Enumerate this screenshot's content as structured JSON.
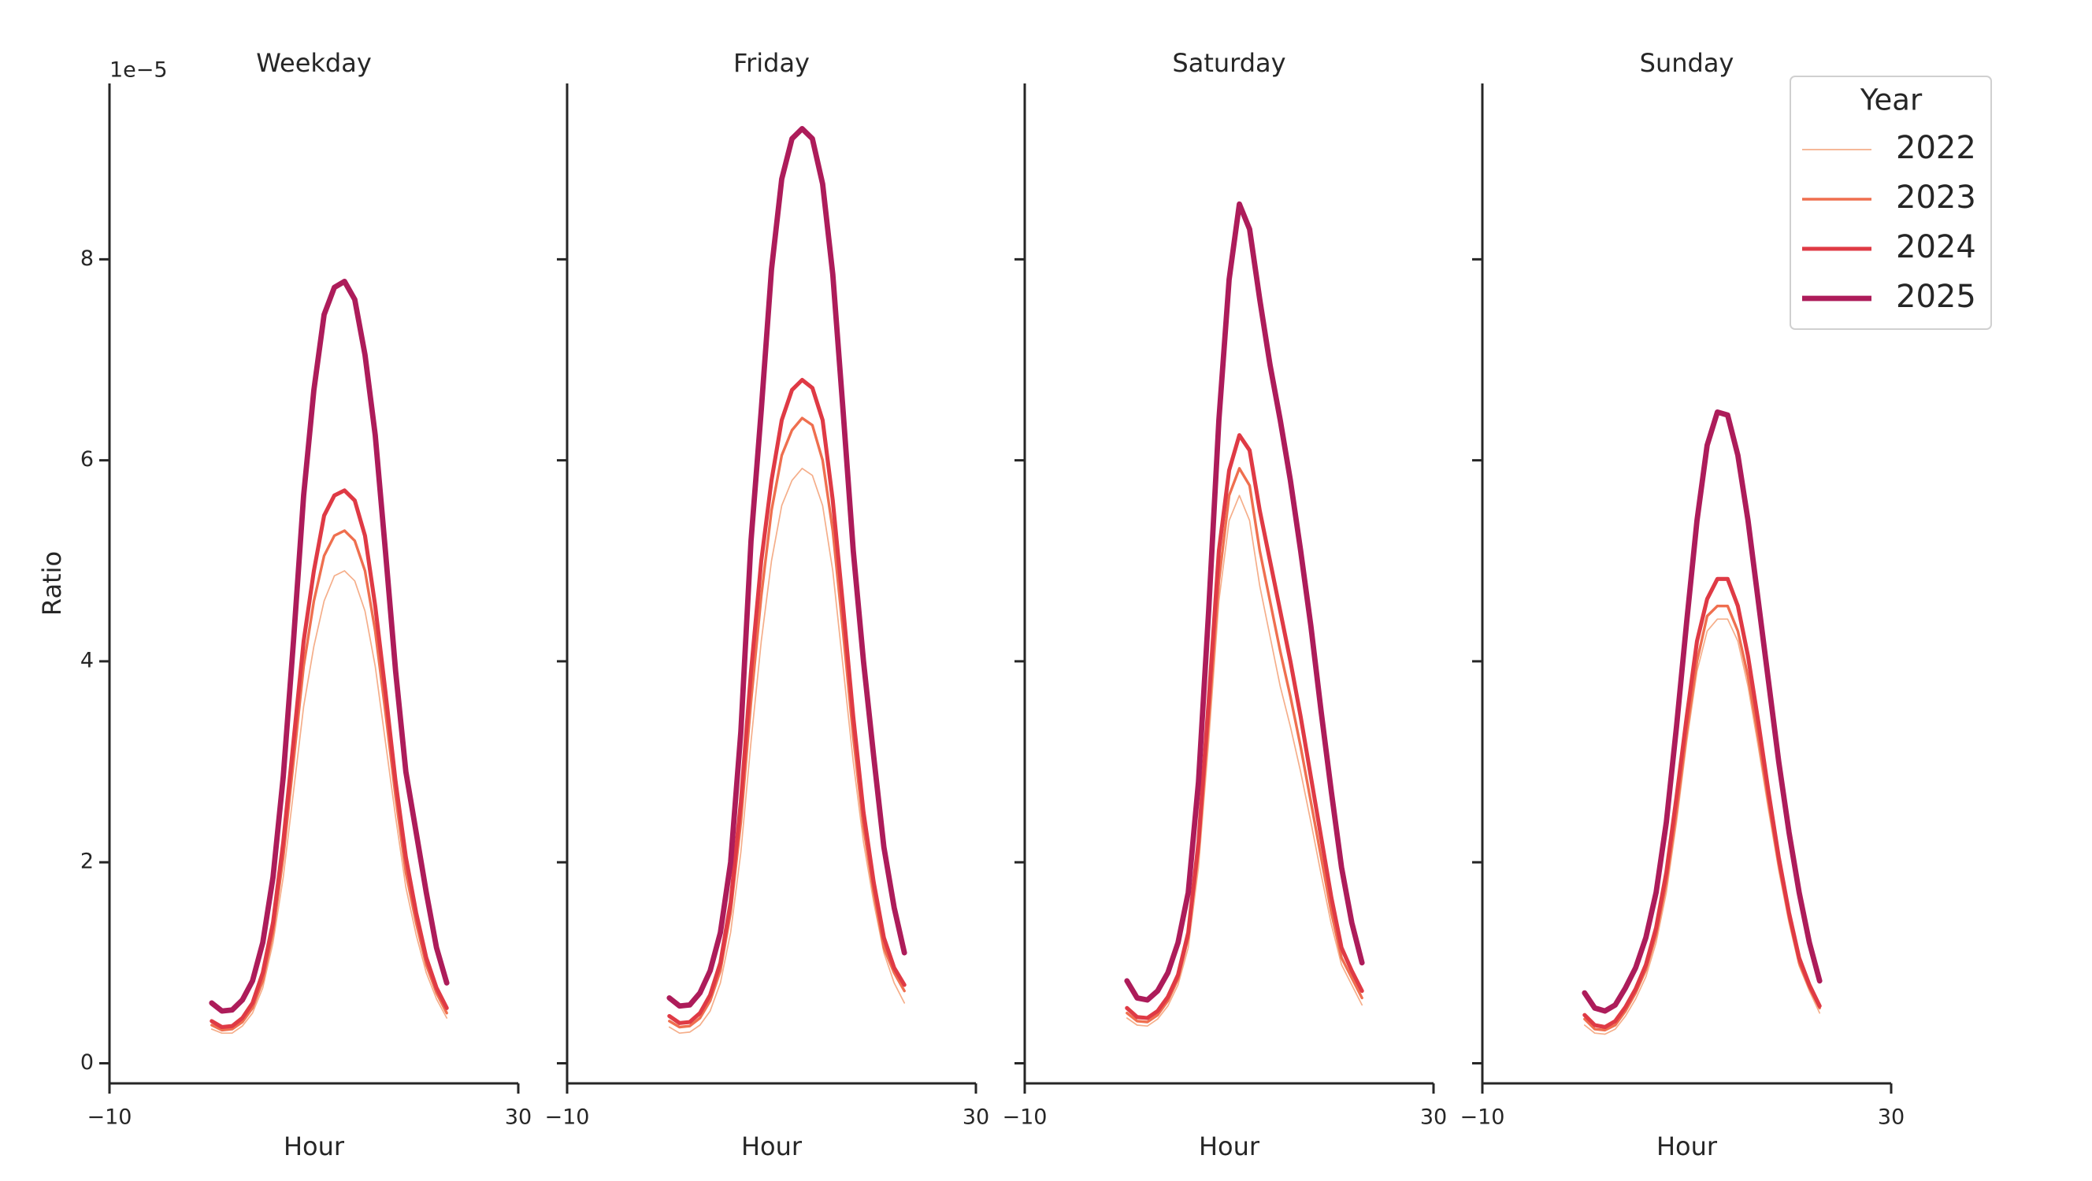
{
  "chart_data": [
    {
      "type": "line",
      "title": "Weekday",
      "xlabel": "Hour",
      "ylabel": "Ratio",
      "offset_label": "1e−5",
      "x": [
        0,
        1,
        2,
        3,
        4,
        5,
        6,
        7,
        8,
        9,
        10,
        11,
        12,
        13,
        14,
        15,
        16,
        17,
        18,
        19,
        20,
        21,
        22,
        23
      ],
      "xlim": [
        -10,
        30
      ],
      "xticks": [
        {
          "value": -10,
          "label": "−10"
        },
        30
      ],
      "ylim": [
        -0.2,
        9.75
      ],
      "yticks": [
        0,
        2,
        4,
        6,
        8
      ],
      "series": [
        {
          "name": "2022",
          "color": "#f5ae8a",
          "width": 1.7,
          "values": [
            0.34,
            0.3,
            0.3,
            0.37,
            0.5,
            0.75,
            1.2,
            1.85,
            2.7,
            3.55,
            4.15,
            4.6,
            4.85,
            4.9,
            4.8,
            4.5,
            3.95,
            3.2,
            2.45,
            1.75,
            1.28,
            0.9,
            0.64,
            0.45
          ]
        },
        {
          "name": "2023",
          "color": "#ef6f4f",
          "width": 3.4,
          "values": [
            0.38,
            0.33,
            0.34,
            0.41,
            0.55,
            0.82,
            1.3,
            2.05,
            3.0,
            3.95,
            4.6,
            5.05,
            5.25,
            5.3,
            5.2,
            4.9,
            4.3,
            3.5,
            2.65,
            1.9,
            1.4,
            0.98,
            0.7,
            0.5
          ]
        },
        {
          "name": "2024",
          "color": "#df3a45",
          "width": 5.1,
          "values": [
            0.42,
            0.36,
            0.37,
            0.45,
            0.6,
            0.9,
            1.4,
            2.2,
            3.2,
            4.2,
            4.9,
            5.45,
            5.65,
            5.7,
            5.6,
            5.25,
            4.55,
            3.7,
            2.8,
            2.05,
            1.5,
            1.05,
            0.75,
            0.55
          ]
        },
        {
          "name": "2025",
          "color": "#ad1c5a",
          "width": 6.8,
          "values": [
            0.6,
            0.52,
            0.53,
            0.63,
            0.82,
            1.2,
            1.85,
            2.85,
            4.2,
            5.65,
            6.7,
            7.45,
            7.72,
            7.78,
            7.6,
            7.05,
            6.25,
            5.1,
            3.9,
            2.9,
            2.3,
            1.7,
            1.15,
            0.8
          ]
        }
      ]
    },
    {
      "type": "line",
      "title": "Friday",
      "xlabel": "Hour",
      "x": [
        0,
        1,
        2,
        3,
        4,
        5,
        6,
        7,
        8,
        9,
        10,
        11,
        12,
        13,
        14,
        15,
        16,
        17,
        18,
        19,
        20,
        21,
        22,
        23
      ],
      "xlim": [
        -10,
        30
      ],
      "xticks": [
        {
          "value": -10,
          "label": "−10"
        },
        30
      ],
      "ylim": [
        -0.2,
        9.75
      ],
      "series": [
        {
          "name": "2022",
          "color": "#f5ae8a",
          "width": 1.7,
          "values": [
            0.36,
            0.3,
            0.31,
            0.38,
            0.52,
            0.8,
            1.3,
            2.1,
            3.2,
            4.2,
            5.0,
            5.55,
            5.8,
            5.92,
            5.85,
            5.55,
            4.9,
            3.95,
            3.0,
            2.2,
            1.6,
            1.1,
            0.8,
            0.6
          ]
        },
        {
          "name": "2023",
          "color": "#ef6f4f",
          "width": 3.4,
          "values": [
            0.42,
            0.36,
            0.37,
            0.45,
            0.62,
            0.92,
            1.5,
            2.4,
            3.6,
            4.65,
            5.5,
            6.05,
            6.3,
            6.42,
            6.35,
            6.0,
            5.3,
            4.3,
            3.25,
            2.35,
            1.7,
            1.15,
            0.9,
            0.72
          ]
        },
        {
          "name": "2024",
          "color": "#df3a45",
          "width": 5.1,
          "values": [
            0.47,
            0.4,
            0.41,
            0.5,
            0.68,
            1.0,
            1.6,
            2.6,
            3.9,
            5.0,
            5.8,
            6.4,
            6.7,
            6.8,
            6.72,
            6.4,
            5.6,
            4.55,
            3.45,
            2.5,
            1.8,
            1.25,
            0.95,
            0.78
          ]
        },
        {
          "name": "2025",
          "color": "#ad1c5a",
          "width": 6.8,
          "values": [
            0.65,
            0.57,
            0.58,
            0.7,
            0.92,
            1.3,
            2.0,
            3.3,
            5.2,
            6.5,
            7.9,
            8.8,
            9.2,
            9.3,
            9.2,
            8.75,
            7.85,
            6.5,
            5.1,
            4.0,
            3.05,
            2.15,
            1.55,
            1.1
          ]
        }
      ]
    },
    {
      "type": "line",
      "title": "Saturday",
      "xlabel": "Hour",
      "x": [
        0,
        1,
        2,
        3,
        4,
        5,
        6,
        7,
        8,
        9,
        10,
        11,
        12,
        13,
        14,
        15,
        16,
        17,
        18,
        19,
        20,
        21,
        22,
        23
      ],
      "xlim": [
        -10,
        30
      ],
      "xticks": [
        {
          "value": -10,
          "label": "−10"
        },
        30
      ],
      "ylim": [
        -0.2,
        9.75
      ],
      "series": [
        {
          "name": "2022",
          "color": "#f5ae8a",
          "width": 1.7,
          "values": [
            0.45,
            0.38,
            0.37,
            0.44,
            0.57,
            0.78,
            1.15,
            1.95,
            3.2,
            4.6,
            5.4,
            5.65,
            5.4,
            4.75,
            4.25,
            3.75,
            3.35,
            2.9,
            2.4,
            1.88,
            1.38,
            0.98,
            0.78,
            0.58
          ]
        },
        {
          "name": "2023",
          "color": "#ef6f4f",
          "width": 3.4,
          "values": [
            0.5,
            0.42,
            0.41,
            0.48,
            0.62,
            0.84,
            1.25,
            2.1,
            3.4,
            4.8,
            5.65,
            5.92,
            5.75,
            5.1,
            4.6,
            4.1,
            3.65,
            3.15,
            2.6,
            2.05,
            1.5,
            1.05,
            0.85,
            0.65
          ]
        },
        {
          "name": "2024",
          "color": "#df3a45",
          "width": 5.1,
          "values": [
            0.55,
            0.46,
            0.45,
            0.52,
            0.66,
            0.88,
            1.3,
            2.2,
            3.6,
            5.1,
            5.9,
            6.25,
            6.1,
            5.5,
            5.0,
            4.5,
            4.0,
            3.45,
            2.85,
            2.25,
            1.65,
            1.15,
            0.92,
            0.72
          ]
        },
        {
          "name": "2025",
          "color": "#ad1c5a",
          "width": 6.8,
          "values": [
            0.82,
            0.65,
            0.63,
            0.72,
            0.9,
            1.2,
            1.7,
            2.8,
            4.5,
            6.4,
            7.8,
            8.55,
            8.3,
            7.6,
            6.95,
            6.4,
            5.8,
            5.1,
            4.35,
            3.5,
            2.7,
            1.95,
            1.4,
            1.0
          ]
        }
      ]
    },
    {
      "type": "line",
      "title": "Sunday",
      "xlabel": "Hour",
      "x": [
        0,
        1,
        2,
        3,
        4,
        5,
        6,
        7,
        8,
        9,
        10,
        11,
        12,
        13,
        14,
        15,
        16,
        17,
        18,
        19,
        20,
        21,
        22,
        23
      ],
      "xlim": [
        -10,
        30
      ],
      "xticks": [
        {
          "value": -10,
          "label": "−10"
        },
        30
      ],
      "ylim": [
        -0.2,
        9.75
      ],
      "legend": {
        "title": "Year",
        "loc": "upper right"
      },
      "series": [
        {
          "name": "2022",
          "color": "#f5ae8a",
          "width": 1.7,
          "values": [
            0.38,
            0.3,
            0.29,
            0.34,
            0.47,
            0.64,
            0.86,
            1.2,
            1.7,
            2.4,
            3.2,
            3.9,
            4.3,
            4.42,
            4.42,
            4.2,
            3.75,
            3.15,
            2.52,
            1.92,
            1.4,
            0.97,
            0.72,
            0.5
          ]
        },
        {
          "name": "2023",
          "color": "#ef6f4f",
          "width": 3.4,
          "values": [
            0.44,
            0.34,
            0.33,
            0.38,
            0.52,
            0.7,
            0.93,
            1.28,
            1.8,
            2.5,
            3.3,
            4.0,
            4.45,
            4.55,
            4.55,
            4.3,
            3.85,
            3.25,
            2.6,
            1.98,
            1.45,
            1.0,
            0.75,
            0.55
          ]
        },
        {
          "name": "2024",
          "color": "#df3a45",
          "width": 5.1,
          "values": [
            0.48,
            0.38,
            0.36,
            0.42,
            0.56,
            0.74,
            0.98,
            1.35,
            1.9,
            2.65,
            3.45,
            4.2,
            4.62,
            4.82,
            4.82,
            4.55,
            4.05,
            3.4,
            2.7,
            2.05,
            1.5,
            1.05,
            0.78,
            0.57
          ]
        },
        {
          "name": "2025",
          "color": "#ad1c5a",
          "width": 6.8,
          "values": [
            0.7,
            0.55,
            0.52,
            0.58,
            0.75,
            0.95,
            1.25,
            1.7,
            2.4,
            3.35,
            4.4,
            5.4,
            6.15,
            6.48,
            6.45,
            6.05,
            5.4,
            4.6,
            3.8,
            3.0,
            2.3,
            1.7,
            1.2,
            0.82
          ]
        }
      ]
    }
  ]
}
